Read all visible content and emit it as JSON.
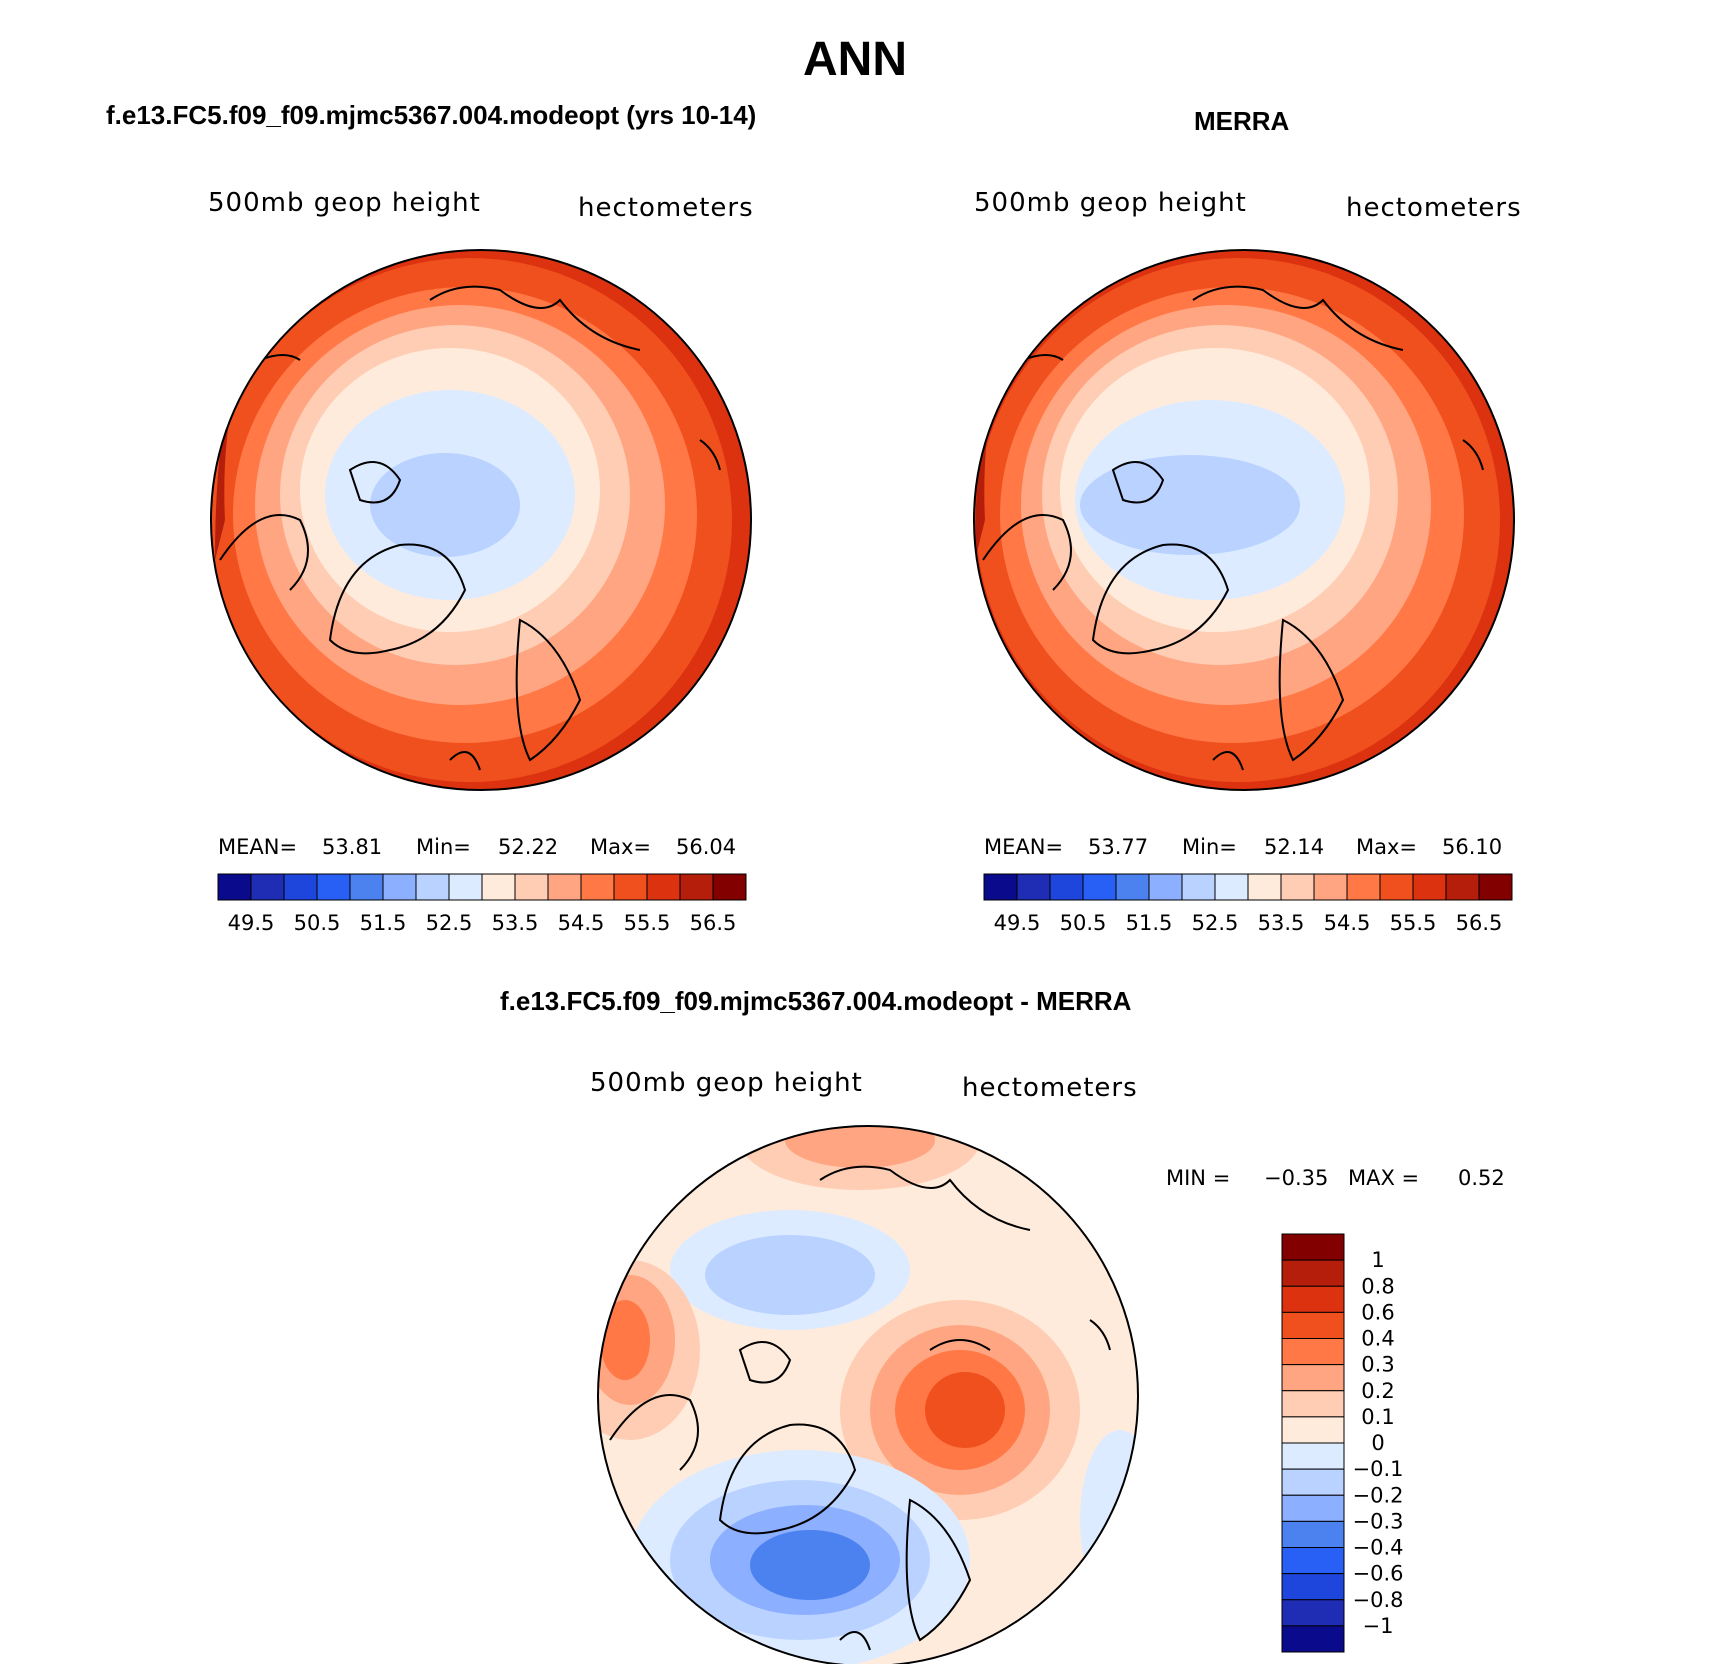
{
  "title": "ANN",
  "panels": {
    "model": {
      "title": "f.e13.FC5.f09_f09.mjmc5367.004.modeopt (yrs 10-14)",
      "variable": "500mb  geop  height",
      "units": "hectometers",
      "mean_label": "MEAN=",
      "mean": "53.81",
      "min_label": "Min=",
      "min": "52.22",
      "max_label": "Max=",
      "max": "56.04"
    },
    "obs": {
      "title": "MERRA",
      "variable": "500mb  geop  height",
      "units": "hectometers",
      "mean_label": "MEAN=",
      "mean": "53.77",
      "min_label": "Min=",
      "min": "52.14",
      "max_label": "Max=",
      "max": "56.10"
    },
    "diff": {
      "title": "f.e13.FC5.f09_f09.mjmc5367.004.modeopt - MERRA",
      "variable": "500mb  geop  height",
      "units": "hectometers",
      "min_label": "MIN =",
      "min": "−0.35",
      "max_label": "MAX =",
      "max": "0.52"
    }
  },
  "colorbar_abs": {
    "colors": [
      "#0a0a8c",
      "#1e2db4",
      "#1e46dc",
      "#285ff5",
      "#4b82f0",
      "#8cafff",
      "#b9d2ff",
      "#dcebff",
      "#ffebdc",
      "#ffcdb4",
      "#ffa582",
      "#ff7846",
      "#f0501e",
      "#dc3210",
      "#b41e0a",
      "#820000"
    ],
    "labels": [
      "49.5",
      "50.5",
      "51.5",
      "52.5",
      "53.5",
      "54.5",
      "55.5",
      "56.5"
    ]
  },
  "colorbar_diff": {
    "colors": [
      "#820000",
      "#b41e0a",
      "#dc3210",
      "#f0501e",
      "#ff7846",
      "#ffa582",
      "#ffcdb4",
      "#ffebdc",
      "#dcebff",
      "#b9d2ff",
      "#8cafff",
      "#4b82f0",
      "#285ff5",
      "#1e46dc",
      "#1e2db4",
      "#0a0a8c"
    ],
    "labels": [
      "1",
      "0.8",
      "0.6",
      "0.4",
      "0.3",
      "0.2",
      "0.1",
      "0",
      "−0.1",
      "−0.2",
      "−0.3",
      "−0.4",
      "−0.6",
      "−0.8",
      "−1"
    ]
  }
}
